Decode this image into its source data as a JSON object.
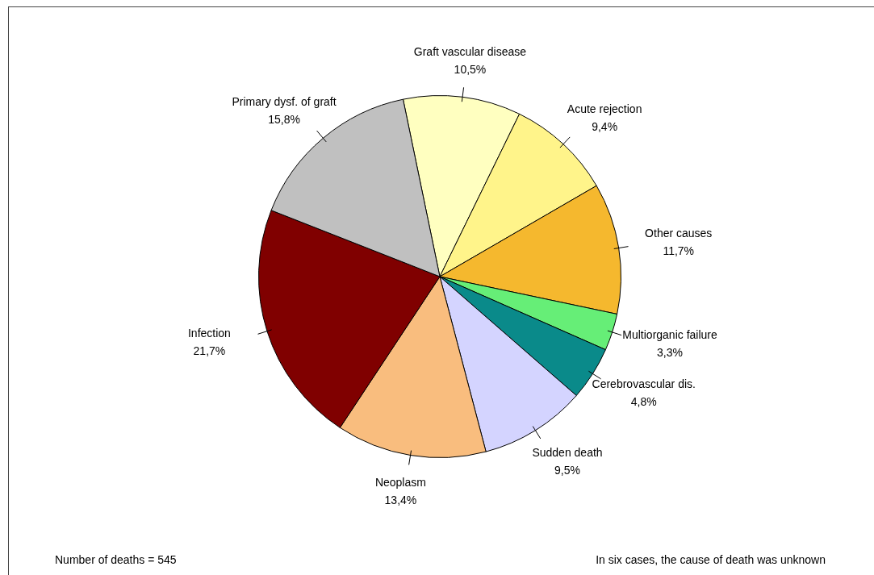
{
  "chart_data": {
    "type": "pie",
    "categories": [
      "Graft vascular disease",
      "Acute rejection",
      "Other causes",
      "Multiorganic failure",
      "Cerebrovascular dis.",
      "Sudden death",
      "Neoplasm",
      "Infection",
      "Primary dysf. of graft"
    ],
    "values": [
      10.5,
      9.4,
      11.7,
      3.3,
      4.8,
      9.5,
      13.4,
      21.7,
      15.8
    ],
    "value_labels": [
      "10,5%",
      "9,4%",
      "11,7%",
      "3,3%",
      "4,8%",
      "9,5%",
      "13,4%",
      "21,7%",
      "15,8%"
    ],
    "colors": [
      "#ffffc0",
      "#fff48a",
      "#f5b82e",
      "#66ee77",
      "#0a8a8a",
      "#d4d4ff",
      "#f9bd7e",
      "#800000",
      "#c0c0c0"
    ],
    "legend": false,
    "annotations": [
      "Number of deaths = 545",
      "In six cases, the cause of death was unknown"
    ]
  }
}
